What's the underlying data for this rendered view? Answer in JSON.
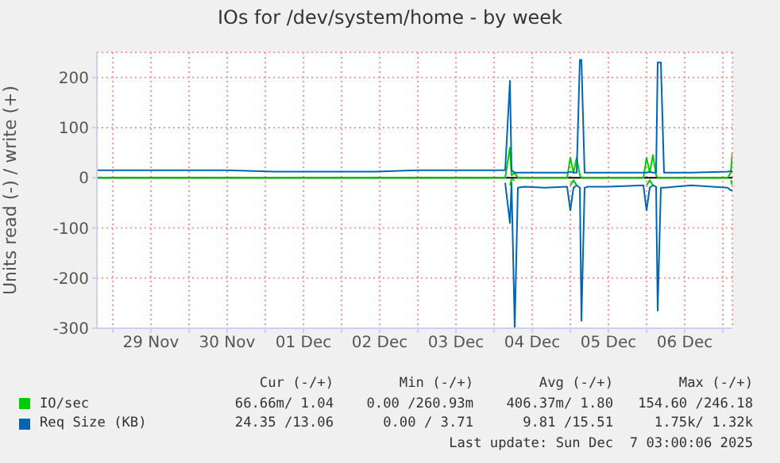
{
  "chart_data": {
    "type": "line",
    "title": "IOs for /dev/system/home - by week",
    "ylabel": "Units read (-) / write (+)",
    "x": [
      "2025-11-28T19:00",
      "2025-11-29T12:00",
      "2025-11-30T12:00",
      "2025-12-01T03:00",
      "2025-12-01T12:00",
      "2025-12-02T10:30",
      "2025-12-03T00:00",
      "2025-12-03T12:00",
      "2025-12-04T03:30",
      "2025-12-04T05:00",
      "2025-12-04T05:30",
      "2025-12-04T06:30",
      "2025-12-04T07:30",
      "2025-12-04T09:30",
      "2025-12-04T16:00",
      "2025-12-04T23:00",
      "2025-12-05T00:00",
      "2025-12-05T01:00",
      "2025-12-05T02:00",
      "2025-12-05T03:00",
      "2025-12-05T03:30",
      "2025-12-05T04:30",
      "2025-12-05T05:30",
      "2025-12-05T12:00",
      "2025-12-05T23:00",
      "2025-12-06T00:00",
      "2025-12-06T01:00",
      "2025-12-06T02:00",
      "2025-12-06T03:00",
      "2025-12-06T03:30",
      "2025-12-06T04:30",
      "2025-12-06T05:30",
      "2025-12-06T14:00",
      "2025-12-07T01:30",
      "2025-12-07T02:30",
      "2025-12-07T03:00"
    ],
    "series": [
      {
        "name": "IO/sec",
        "color": "#00cc00",
        "values": [
          0,
          0,
          0,
          0,
          0,
          0,
          0,
          0,
          0,
          60,
          5,
          10,
          0,
          0,
          0,
          0,
          40,
          10,
          40,
          5,
          0,
          0,
          0,
          0,
          0,
          40,
          10,
          45,
          5,
          0,
          0,
          0,
          0,
          0,
          10,
          50
        ]
      },
      {
        "color": "#00cc00",
        "values": [
          null,
          null,
          null,
          null,
          null,
          null,
          null,
          null,
          null,
          -15,
          -3,
          -5,
          null,
          null,
          null,
          null,
          -15,
          -5,
          -15,
          null,
          null,
          null,
          null,
          null,
          null,
          -15,
          -5,
          -15,
          null,
          null,
          null,
          null,
          null,
          null,
          -5,
          -15
        ]
      },
      {
        "name": "Req Size (KB)",
        "color": "#0066b3",
        "values": [
          15,
          15,
          15,
          12,
          12,
          12,
          15,
          15,
          15,
          193,
          15,
          10,
          10,
          10,
          10,
          10,
          12,
          10,
          10,
          235,
          235,
          10,
          10,
          10,
          10,
          10,
          12,
          10,
          10,
          230,
          230,
          10,
          10,
          12,
          13,
          13
        ]
      },
      {
        "color": "#0066b3",
        "values": [
          null,
          null,
          null,
          null,
          null,
          null,
          null,
          null,
          -10,
          -90,
          -10,
          -300,
          -20,
          -18,
          -20,
          -18,
          -65,
          -20,
          -15,
          -20,
          -285,
          -20,
          -18,
          -18,
          -15,
          -65,
          -20,
          -15,
          -18,
          -265,
          -20,
          -20,
          -15,
          -20,
          -25,
          -25
        ]
      }
    ],
    "xlim": [
      "2025-11-28T19:00",
      "2025-12-07T03:00"
    ],
    "xticks": [
      {
        "value": "2025-11-29T00:00",
        "label": null
      },
      {
        "value": "2025-11-29T12:00",
        "label": "29 Nov"
      },
      {
        "value": "2025-11-30T00:00",
        "label": null
      },
      {
        "value": "2025-11-30T12:00",
        "label": "30 Nov"
      },
      {
        "value": "2025-12-01T00:00",
        "label": null
      },
      {
        "value": "2025-12-01T12:00",
        "label": "01 Dec"
      },
      {
        "value": "2025-12-02T00:00",
        "label": null
      },
      {
        "value": "2025-12-02T12:00",
        "label": "02 Dec"
      },
      {
        "value": "2025-12-03T00:00",
        "label": null
      },
      {
        "value": "2025-12-03T12:00",
        "label": "03 Dec"
      },
      {
        "value": "2025-12-04T00:00",
        "label": null
      },
      {
        "value": "2025-12-04T12:00",
        "label": "04 Dec"
      },
      {
        "value": "2025-12-05T00:00",
        "label": null
      },
      {
        "value": "2025-12-05T12:00",
        "label": "05 Dec"
      },
      {
        "value": "2025-12-06T00:00",
        "label": null
      },
      {
        "value": "2025-12-06T12:00",
        "label": "06 Dec"
      },
      {
        "value": "2025-12-07T00:00",
        "label": null
      }
    ],
    "ylim": [
      -300,
      250
    ],
    "yticks": [
      -300,
      -200,
      -100,
      0,
      100,
      200
    ],
    "ref_lines": [
      {
        "axis": "y",
        "value": 0,
        "color": "#000000"
      }
    ],
    "grid": true,
    "legend": "bottom",
    "annotations": [
      "Cur (-/+)",
      "Min (-/+)",
      "Avg (-/+)",
      "Max (-/+)",
      "66.66m/ 1.04",
      "0.00 /260.93m",
      "406.37m/ 1.80",
      "154.60 /246.18",
      "24.35 /13.06",
      "0.00 / 3.71",
      "9.81 /15.51",
      "1.75k/ 1.32k",
      "Last update: Sun Dec  7 03:00:06 2025"
    ]
  }
}
